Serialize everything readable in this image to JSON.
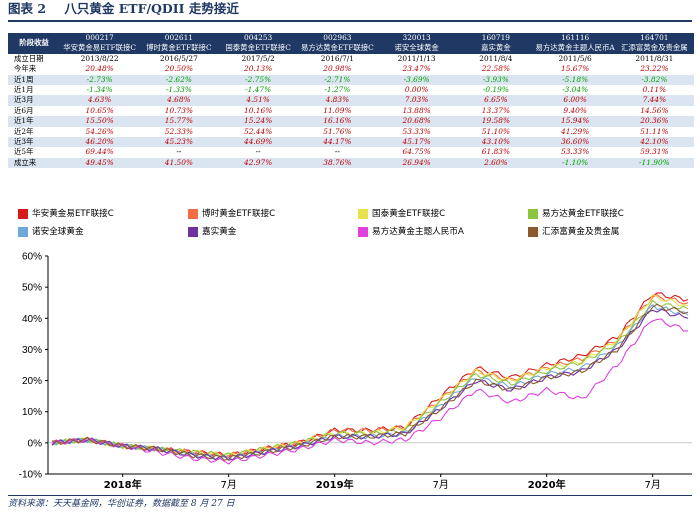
{
  "title": {
    "figure_no": "图表 2",
    "text": "八只黄金 ETF/QDII 走势接近"
  },
  "source": "资料来源：天天基金网，华创证券，数据截至 8 月 27 日",
  "table": {
    "stage_label": "阶段收益",
    "date_label": "成立日期",
    "funds": [
      {
        "code": "000217",
        "name": "华安黄金易ETF联接C",
        "date": "2013/8/22"
      },
      {
        "code": "002611",
        "name": "博时黄金ETF联接C",
        "date": "2016/5/27"
      },
      {
        "code": "004253",
        "name": "国泰黄金ETF联接C",
        "date": "2017/5/2"
      },
      {
        "code": "002963",
        "name": "易方达黄金ETF联接C",
        "date": "2016/7/1"
      },
      {
        "code": "320013",
        "name": "诺安全球黄金",
        "date": "2011/1/13"
      },
      {
        "code": "160719",
        "name": "嘉实黄金",
        "date": "2011/8/4"
      },
      {
        "code": "161116",
        "name": "易方达黄金主题人民币A",
        "date": "2011/5/6"
      },
      {
        "code": "164701",
        "name": "汇添富黄金及贵金属",
        "date": "2011/8/31"
      }
    ],
    "rows": [
      {
        "label": "今年来",
        "values": [
          "20.48%",
          "20.50%",
          "20.13%",
          "20.98%",
          "23.47%",
          "22.58%",
          "15.67%",
          "23.22%"
        ]
      },
      {
        "label": "近1周",
        "values": [
          "-2.73%",
          "-2.62%",
          "-2.75%",
          "-2.71%",
          "-3.69%",
          "-3.93%",
          "-5.18%",
          "-3.82%"
        ]
      },
      {
        "label": "近1月",
        "values": [
          "-1.34%",
          "-1.33%",
          "-1.47%",
          "-1.27%",
          "0.00%",
          "-0.19%",
          "-3.04%",
          "0.11%"
        ]
      },
      {
        "label": "近3月",
        "values": [
          "4.63%",
          "4.68%",
          "4.51%",
          "4.83%",
          "7.03%",
          "6.65%",
          "6.00%",
          "7.44%"
        ]
      },
      {
        "label": "近6月",
        "values": [
          "10.65%",
          "10.73%",
          "10.16%",
          "11.09%",
          "13.88%",
          "13.37%",
          "9.40%",
          "14.56%"
        ]
      },
      {
        "label": "近1年",
        "values": [
          "15.50%",
          "15.77%",
          "15.24%",
          "16.16%",
          "20.68%",
          "19.58%",
          "15.94%",
          "20.36%"
        ]
      },
      {
        "label": "近2年",
        "values": [
          "54.26%",
          "52.33%",
          "52.44%",
          "51.76%",
          "53.33%",
          "51.10%",
          "41.29%",
          "51.11%"
        ]
      },
      {
        "label": "近3年",
        "values": [
          "46.20%",
          "45.23%",
          "44.69%",
          "44.17%",
          "45.17%",
          "43.10%",
          "36.60%",
          "42.10%"
        ]
      },
      {
        "label": "近5年",
        "values": [
          "69.44%",
          "--",
          "--",
          "--",
          "64.75%",
          "61.83%",
          "53.33%",
          "59.31%"
        ]
      },
      {
        "label": "成立来",
        "values": [
          "49.45%",
          "41.50%",
          "42.97%",
          "38.76%",
          "26.94%",
          "2.60%",
          "-1.10%",
          "-11.90%"
        ]
      }
    ]
  },
  "legend": [
    {
      "name": "华安黄金易ETF联接C",
      "color": "#d7191c"
    },
    {
      "name": "博时黄金ETF联接C",
      "color": "#f46d43"
    },
    {
      "name": "国泰黄金ETF联接C",
      "color": "#e8e24a"
    },
    {
      "name": "易方达黄金ETF联接C",
      "color": "#8cc63f"
    },
    {
      "name": "诺安全球黄金",
      "color": "#6fa8dc"
    },
    {
      "name": "嘉实黄金",
      "color": "#7030a0"
    },
    {
      "name": "易方达黄金主题人民币A",
      "color": "#e040e0"
    },
    {
      "name": "汇添富黄金及贵金属",
      "color": "#8b5a2b"
    }
  ],
  "chart_data": {
    "type": "line",
    "ylim": [
      -10,
      60
    ],
    "yticks": [
      -10,
      0,
      10,
      20,
      30,
      40,
      50,
      60
    ],
    "ytick_format": "%",
    "x_tick_labels": [
      "2018年",
      "7月",
      "2019年",
      "7月",
      "2020年",
      "7月"
    ],
    "grid": false,
    "x": [
      "2017-09",
      "2017-11",
      "2018-01",
      "2018-03",
      "2018-05",
      "2018-07",
      "2018-09",
      "2018-11",
      "2019-01",
      "2019-03",
      "2019-05",
      "2019-07",
      "2019-09",
      "2019-11",
      "2020-01",
      "2020-03",
      "2020-05",
      "2020-07",
      "2020-08"
    ],
    "series": [
      {
        "name": "华安黄金易ETF联接C",
        "values": [
          0,
          1,
          -1,
          -2,
          -3,
          -4,
          -2,
          0,
          4,
          4,
          5,
          15,
          24,
          21,
          25,
          28,
          34,
          48,
          46
        ]
      },
      {
        "name": "博时黄金ETF联接C",
        "values": [
          0,
          1,
          -1,
          -2,
          -3,
          -4,
          -2,
          0,
          4,
          4,
          5,
          14,
          23,
          20,
          24,
          27,
          33,
          47,
          45
        ]
      },
      {
        "name": "国泰黄金ETF联接C",
        "values": [
          0,
          1,
          -1,
          -2,
          -3,
          -4,
          -2,
          0,
          3,
          3,
          5,
          14,
          23,
          20,
          24,
          26,
          33,
          47,
          44
        ]
      },
      {
        "name": "易方达黄金ETF联接C",
        "values": [
          0,
          1,
          -1,
          -2,
          -3,
          -4,
          -2,
          0,
          3,
          3,
          4,
          13,
          22,
          19,
          23,
          26,
          32,
          45,
          43
        ]
      },
      {
        "name": "诺安全球黄金",
        "values": [
          0,
          1,
          -1,
          -2,
          -4,
          -5,
          -3,
          -1,
          2,
          2,
          3,
          12,
          21,
          18,
          22,
          24,
          31,
          44,
          41
        ]
      },
      {
        "name": "嘉实黄金",
        "values": [
          0,
          1,
          -1,
          -2,
          -4,
          -5,
          -3,
          -1,
          2,
          2,
          3,
          11,
          20,
          17,
          21,
          23,
          30,
          43,
          40
        ]
      },
      {
        "name": "易方达黄金主题人民币A",
        "values": [
          0,
          1,
          -1,
          -3,
          -5,
          -6,
          -4,
          -2,
          1,
          0,
          1,
          8,
          17,
          13,
          17,
          14,
          25,
          40,
          36
        ]
      },
      {
        "name": "汇添富黄金及贵金属",
        "values": [
          0,
          1,
          -1,
          -2,
          -4,
          -5,
          -3,
          -1,
          2,
          2,
          3,
          11,
          20,
          17,
          21,
          23,
          30,
          44,
          42
        ]
      }
    ]
  }
}
